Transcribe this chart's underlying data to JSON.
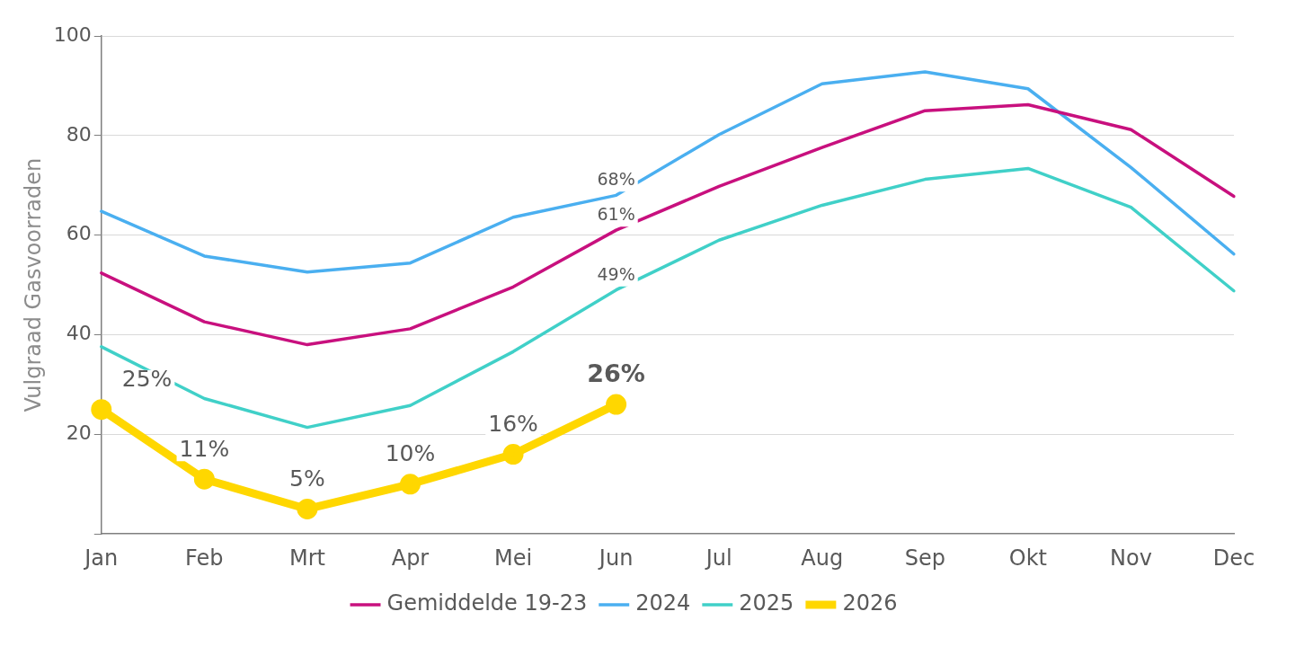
{
  "chart_data": {
    "type": "line",
    "categories": [
      "Jan",
      "Feb",
      "Mrt",
      "Apr",
      "Mei",
      "Jun",
      "Jul",
      "Aug",
      "Sep",
      "Okt",
      "Nov",
      "Dec"
    ],
    "ylabel": "Vulgraad Gasvoorraden",
    "ylim": [
      0,
      100
    ],
    "yticks": [
      {
        "value": 0,
        "label": null
      },
      20,
      40,
      60,
      80,
      100
    ],
    "grid": "y",
    "legend": "bottom",
    "series": [
      {
        "name": "2026",
        "color": "#ffd700",
        "marker": "circle",
        "values": [
          25,
          11,
          5,
          10,
          16,
          26,
          null,
          null,
          null,
          null,
          null,
          null
        ],
        "value_labels": [
          "25%",
          "11%",
          "5%",
          "10%",
          "16%",
          "26%",
          null,
          null,
          null,
          null,
          null,
          null
        ]
      },
      {
        "name": "2025",
        "color": "#40d0c8",
        "values": [
          37.6,
          27.2,
          21.4,
          25.8,
          36.6,
          49,
          59,
          66,
          71.2,
          73.4,
          65.6,
          48.8
        ],
        "value_labels": [
          null,
          null,
          null,
          null,
          null,
          "49%",
          null,
          null,
          null,
          null,
          null,
          null
        ]
      },
      {
        "name": "2024",
        "color": "#4aaff0",
        "values": [
          64.8,
          55.8,
          52.6,
          54.4,
          63.6,
          68,
          80.2,
          90.4,
          92.8,
          89.4,
          73.6,
          56.2
        ],
        "value_labels": [
          null,
          null,
          null,
          null,
          null,
          "68%",
          null,
          null,
          null,
          null,
          null,
          null
        ]
      },
      {
        "name": "Gemiddelde 19-23",
        "color": "#c8107e",
        "values": [
          52.4,
          42.6,
          38,
          41.2,
          49.6,
          61,
          69.8,
          77.6,
          85,
          86.2,
          81.2,
          67.8
        ],
        "value_labels": [
          null,
          null,
          null,
          null,
          null,
          "61%",
          null,
          null,
          null,
          null,
          null,
          null
        ]
      }
    ]
  }
}
